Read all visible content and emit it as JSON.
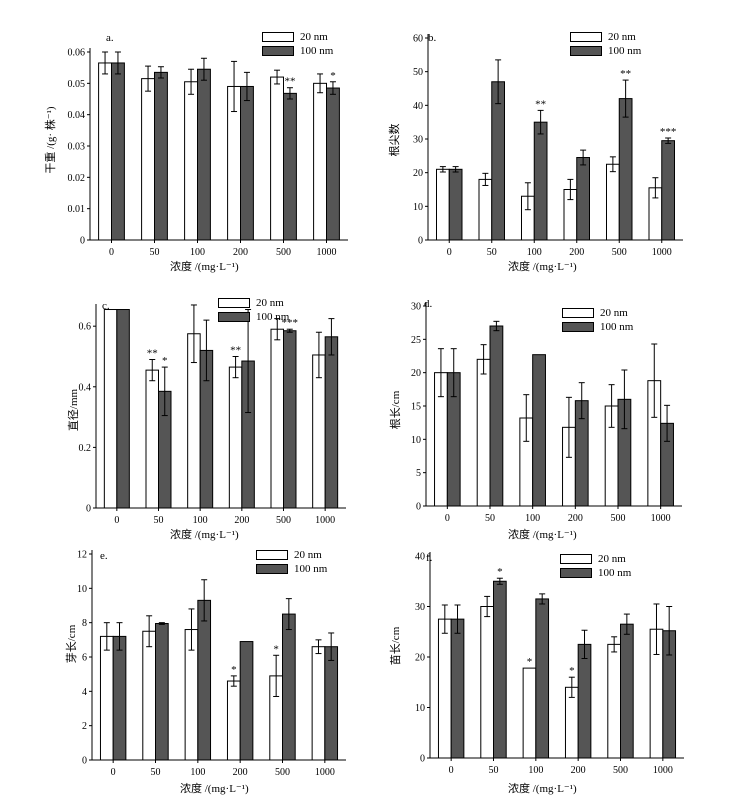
{
  "chart_data": [
    {
      "type": "bar",
      "panel_label": "a.",
      "ylabel": "干重 /(g· 株⁻¹)",
      "xlabel": "浓度 /(mg·L⁻¹)",
      "categories": [
        "0",
        "50",
        "100",
        "200",
        "500",
        "1000"
      ],
      "ylim": [
        0,
        0.06
      ],
      "yticks": [
        "0",
        "0.01",
        "0.02",
        "0.03",
        "0.04",
        "0.05",
        "0.06"
      ],
      "legend": [
        "20 nm",
        "100 nm"
      ],
      "series": [
        {
          "name": "20 nm",
          "values": [
            0.0565,
            0.0515,
            0.0505,
            0.049,
            0.052,
            0.05
          ],
          "errors": [
            0.0035,
            0.004,
            0.004,
            0.008,
            0.0022,
            0.003
          ],
          "marks": [
            "",
            "",
            "",
            "",
            "",
            ""
          ]
        },
        {
          "name": "100 nm",
          "values": [
            0.0565,
            0.0535,
            0.0545,
            0.049,
            0.0468,
            0.0485
          ],
          "errors": [
            0.0035,
            0.0018,
            0.0035,
            0.0045,
            0.0018,
            0.002
          ],
          "marks": [
            "",
            "",
            "",
            "",
            "**",
            "*"
          ]
        }
      ]
    },
    {
      "type": "bar",
      "panel_label": "b.",
      "ylabel": "根尖数",
      "xlabel": "浓度 /(mg·L⁻¹)",
      "categories": [
        "0",
        "50",
        "100",
        "200",
        "500",
        "1000"
      ],
      "ylim": [
        0,
        60
      ],
      "yticks": [
        "0",
        "10",
        "20",
        "30",
        "40",
        "50",
        "60"
      ],
      "legend": [
        "20 nm",
        "100 nm"
      ],
      "series": [
        {
          "name": "20 nm",
          "values": [
            21,
            18,
            13,
            15,
            22.5,
            15.5
          ],
          "errors": [
            0.8,
            1.8,
            4,
            3,
            2.2,
            3
          ],
          "marks": [
            "",
            "",
            "",
            "",
            "",
            ""
          ]
        },
        {
          "name": "100 nm",
          "values": [
            21,
            47,
            35,
            24.5,
            42,
            29.5
          ],
          "errors": [
            0.8,
            6.5,
            3.5,
            2.2,
            5.5,
            0.8
          ],
          "marks": [
            "",
            "",
            "**",
            "",
            "**",
            "***"
          ]
        }
      ]
    },
    {
      "type": "bar",
      "panel_label": "c.",
      "ylabel": "直径/mm",
      "xlabel": "浓度 /(mg·L⁻¹)",
      "categories": [
        "0",
        "50",
        "100",
        "200",
        "500",
        "1000"
      ],
      "ylim": [
        0,
        0.66
      ],
      "yticks": [
        "0",
        "0.2",
        "0.4",
        "0.6"
      ],
      "yticks_values": [
        0,
        0.2,
        0.4,
        0.6
      ],
      "legend": [
        "20 nm",
        "100 nm"
      ],
      "series": [
        {
          "name": "20 nm",
          "values": [
            0.655,
            0.455,
            0.575,
            0.465,
            0.59,
            0.505
          ],
          "errors": [
            0,
            0.035,
            0.095,
            0.035,
            0.035,
            0.075
          ],
          "marks": [
            "",
            "**",
            "",
            "**",
            "",
            ""
          ]
        },
        {
          "name": "100 nm",
          "values": [
            0.655,
            0.385,
            0.52,
            0.485,
            0.585,
            0.565
          ],
          "errors": [
            0,
            0.08,
            0.1,
            0.17,
            0.005,
            0.06
          ],
          "marks": [
            "",
            "*",
            "",
            "",
            "***",
            ""
          ]
        }
      ]
    },
    {
      "type": "bar",
      "panel_label": "d.",
      "ylabel": "根长/cm",
      "xlabel": "浓度 /(mg·L⁻¹)",
      "categories": [
        "0",
        "50",
        "100",
        "200",
        "500",
        "1000"
      ],
      "ylim": [
        0,
        30
      ],
      "yticks": [
        "0",
        "5",
        "10",
        "15",
        "20",
        "25",
        "30"
      ],
      "legend": [
        "20 nm",
        "100 nm"
      ],
      "series": [
        {
          "name": "20 nm",
          "values": [
            20,
            22,
            13.2,
            11.8,
            15,
            18.8
          ],
          "errors": [
            3.6,
            2.2,
            3.5,
            4.5,
            3.2,
            5.5
          ],
          "marks": [
            "",
            "",
            "",
            "",
            "",
            ""
          ]
        },
        {
          "name": "100 nm",
          "values": [
            20,
            27,
            22.7,
            15.8,
            16,
            12.4
          ],
          "errors": [
            3.6,
            0.7,
            0,
            2.7,
            4.4,
            2.7
          ],
          "marks": [
            "",
            "",
            "",
            "",
            "",
            ""
          ]
        }
      ]
    },
    {
      "type": "bar",
      "panel_label": "e.",
      "ylabel": "芽长/cm",
      "xlabel": "浓度 /(mg·L⁻¹)",
      "categories": [
        "0",
        "50",
        "100",
        "200",
        "500",
        "1000"
      ],
      "ylim": [
        0,
        12
      ],
      "yticks": [
        "0",
        "2",
        "4",
        "6",
        "8",
        "10",
        "12"
      ],
      "legend": [
        "20 nm",
        "100 nm"
      ],
      "series": [
        {
          "name": "20 nm",
          "values": [
            7.2,
            7.5,
            7.6,
            4.6,
            4.9,
            6.6
          ],
          "errors": [
            0.8,
            0.9,
            1.2,
            0.3,
            1.2,
            0.4
          ],
          "marks": [
            "",
            "",
            "",
            "*",
            "*",
            ""
          ]
        },
        {
          "name": "100 nm",
          "values": [
            7.2,
            7.95,
            9.3,
            6.9,
            8.5,
            6.6
          ],
          "errors": [
            0.8,
            0.05,
            1.2,
            0,
            0.9,
            0.8
          ],
          "marks": [
            "",
            "",
            "",
            "",
            "",
            ""
          ]
        }
      ]
    },
    {
      "type": "bar",
      "panel_label": "f.",
      "ylabel": "苗长/cm",
      "xlabel": "浓度 /(mg·L⁻¹)",
      "categories": [
        "0",
        "50",
        "100",
        "200",
        "500",
        "1000"
      ],
      "ylim": [
        0,
        40
      ],
      "yticks": [
        "0",
        "10",
        "20",
        "30",
        "40"
      ],
      "legend": [
        "20 nm",
        "100 nm"
      ],
      "series": [
        {
          "name": "20 nm",
          "values": [
            27.5,
            30,
            17.8,
            14,
            22.5,
            25.5
          ],
          "errors": [
            2.8,
            2,
            0,
            2,
            1.5,
            5
          ],
          "marks": [
            "",
            "",
            "*",
            "*",
            "",
            ""
          ]
        },
        {
          "name": "100 nm",
          "values": [
            27.5,
            35,
            31.5,
            22.5,
            26.5,
            25.2
          ],
          "errors": [
            2.8,
            0.6,
            1,
            2.8,
            2,
            4.8
          ],
          "marks": [
            "",
            "*",
            "",
            "",
            "",
            ""
          ]
        }
      ]
    }
  ]
}
